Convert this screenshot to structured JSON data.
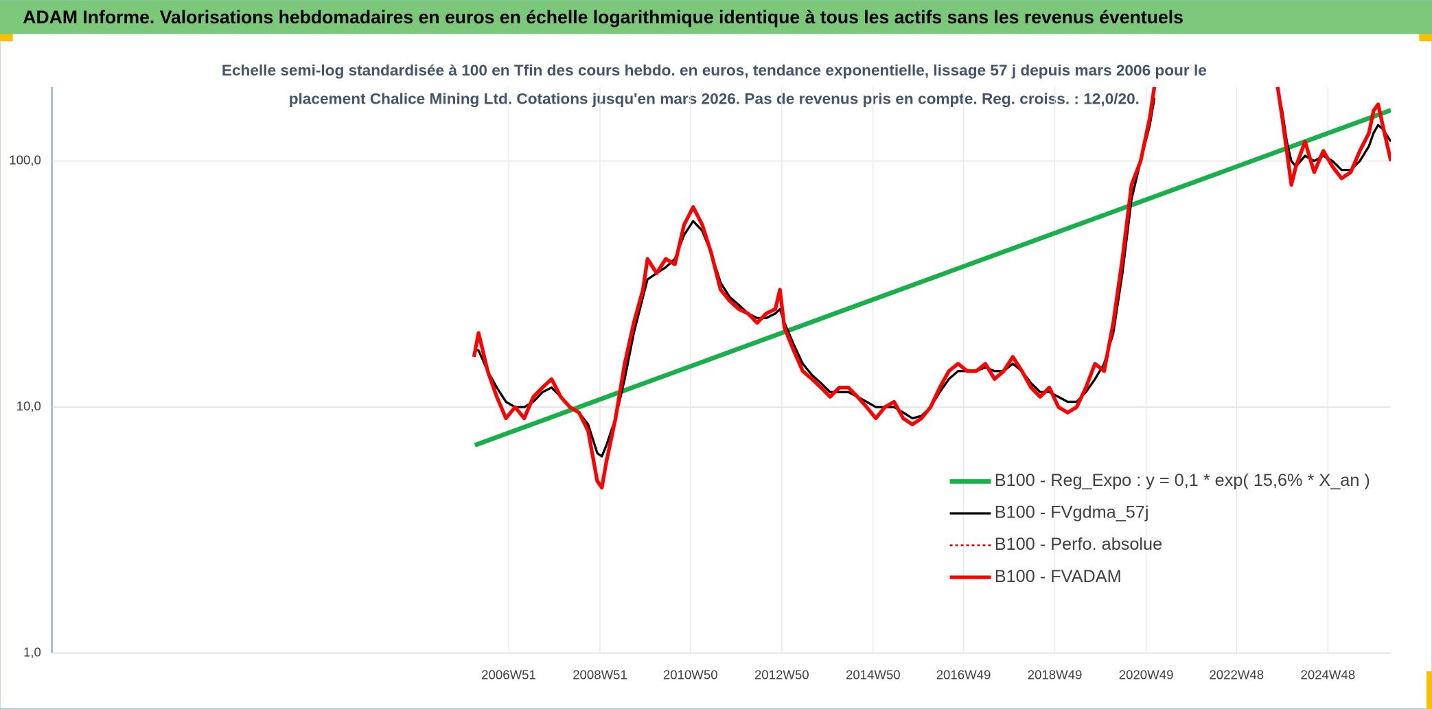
{
  "chart_data": {
    "type": "line",
    "title": "ADAM Informe. Valorisations hebdomadaires en euros en échelle logarithmique identique à tous les actifs sans les revenus éventuels",
    "subtitle": [
      "Echelle semi-log standardisée à 100 en Tfin des cours hebdo. en euros, tendance exponentielle, lissage 57 j depuis mars 2006 pour le",
      "placement Chalice Mining Ltd. Cotations jusqu'en mars 2026. Pas de revenus pris en compte. Reg. croiss. : 12,0/20."
    ],
    "log_scale": true,
    "grid": true,
    "legend_position": "lower-right",
    "xlim": [
      1996.96,
      2026.28
    ],
    "ylim": [
      1,
      200
    ],
    "xticks": [
      {
        "value": 2006.96,
        "label": "2006W51"
      },
      {
        "value": 2008.96,
        "label": "2008W51"
      },
      {
        "value": 2010.94,
        "label": "2010W50"
      },
      {
        "value": 2012.94,
        "label": "2012W50"
      },
      {
        "value": 2014.94,
        "label": "2014W50"
      },
      {
        "value": 2016.92,
        "label": "2016W49"
      },
      {
        "value": 2018.92,
        "label": "2018W49"
      },
      {
        "value": 2020.92,
        "label": "2020W49"
      },
      {
        "value": 2022.9,
        "label": "2022W48"
      },
      {
        "value": 2024.9,
        "label": "2024W48"
      }
    ],
    "yticks": [
      {
        "value": 1,
        "label": "1,0"
      },
      {
        "value": 10,
        "label": "10,0"
      },
      {
        "value": 100,
        "label": "100,0"
      }
    ],
    "x": [
      2006.2,
      2006.3,
      2006.5,
      2006.7,
      2006.9,
      2007.1,
      2007.3,
      2007.5,
      2007.7,
      2007.9,
      2008.1,
      2008.3,
      2008.5,
      2008.7,
      2008.9,
      2009.0,
      2009.1,
      2009.3,
      2009.5,
      2009.7,
      2009.9,
      2010.0,
      2010.2,
      2010.4,
      2010.6,
      2010.8,
      2011.0,
      2011.2,
      2011.4,
      2011.6,
      2011.8,
      2012.0,
      2012.2,
      2012.4,
      2012.6,
      2012.8,
      2012.9,
      2013.0,
      2013.2,
      2013.4,
      2013.6,
      2013.8,
      2014.0,
      2014.2,
      2014.4,
      2014.6,
      2014.8,
      2015.0,
      2015.2,
      2015.4,
      2015.6,
      2015.8,
      2016.0,
      2016.2,
      2016.4,
      2016.6,
      2016.8,
      2017.0,
      2017.2,
      2017.4,
      2017.6,
      2017.8,
      2018.0,
      2018.2,
      2018.4,
      2018.6,
      2018.8,
      2019.0,
      2019.2,
      2019.4,
      2019.6,
      2019.8,
      2020.0,
      2020.2,
      2020.4,
      2020.6,
      2020.8,
      2021.0,
      2021.1,
      2022.5,
      2023.8,
      2023.9,
      2024.0,
      2024.1,
      2024.2,
      2024.4,
      2024.6,
      2024.8,
      2025.0,
      2025.2,
      2025.4,
      2025.6,
      2025.8,
      2025.9,
      2026.0,
      2026.1,
      2026.28
    ],
    "series": [
      {
        "name": "B100 - Reg_Expo : y = 0,1 * exp( 15,6% *  X_an )",
        "color": "#19b04b",
        "width": 5,
        "x": [
          2006.22,
          2026.28
        ],
        "values": [
          7.0,
          161
        ]
      },
      {
        "name": "B100 - FVgdma_57j",
        "color": "#000000",
        "width": 2.5,
        "values": [
          17,
          17,
          14,
          12,
          10.5,
          10,
          10,
          10.5,
          11.5,
          12,
          11,
          10,
          9.5,
          8.5,
          6.5,
          6.3,
          7,
          9,
          13,
          20,
          28,
          33,
          35,
          37,
          40,
          50,
          57,
          52,
          42,
          32,
          28,
          26,
          24,
          23,
          23,
          24,
          25,
          22,
          18,
          15,
          13.5,
          12.5,
          11.5,
          11.5,
          11.5,
          11,
          10.5,
          10,
          10,
          10,
          9.5,
          9,
          9.2,
          10,
          11.5,
          13,
          14,
          14,
          14,
          14.5,
          14,
          14,
          15,
          14,
          12.5,
          11.5,
          11.5,
          11,
          10.5,
          10.5,
          11.5,
          13,
          15,
          20,
          35,
          70,
          100,
          140,
          180,
          null,
          200,
          160,
          120,
          100,
          95,
          105,
          100,
          105,
          100,
          92,
          92,
          100,
          115,
          130,
          140,
          135,
          120
        ]
      },
      {
        "name": "B100 - Perfo. absolue",
        "color": "#e00000",
        "width": 2,
        "dash": "3 3"
      },
      {
        "name": "B100 - FVADAM",
        "color": "#ff0000",
        "width": 4,
        "values": [
          16,
          20,
          14,
          11,
          9,
          10,
          9,
          11,
          12,
          13,
          11,
          10,
          9.5,
          8,
          5,
          4.7,
          6,
          9,
          15,
          22,
          30,
          40,
          35,
          40,
          38,
          55,
          65,
          55,
          42,
          30,
          27,
          25,
          24,
          22,
          24,
          25,
          30,
          21,
          17,
          14,
          13,
          12,
          11,
          12,
          12,
          11,
          10,
          9,
          10,
          10.5,
          9,
          8.5,
          9,
          10,
          12,
          14,
          15,
          14,
          14,
          15,
          13,
          14,
          16,
          14,
          12,
          11,
          12,
          10,
          9.5,
          10,
          12,
          15,
          14,
          22,
          40,
          80,
          100,
          150,
          200,
          null,
          200,
          150,
          110,
          80,
          95,
          120,
          90,
          110,
          95,
          85,
          90,
          110,
          130,
          160,
          170,
          140,
          100
        ]
      }
    ]
  }
}
